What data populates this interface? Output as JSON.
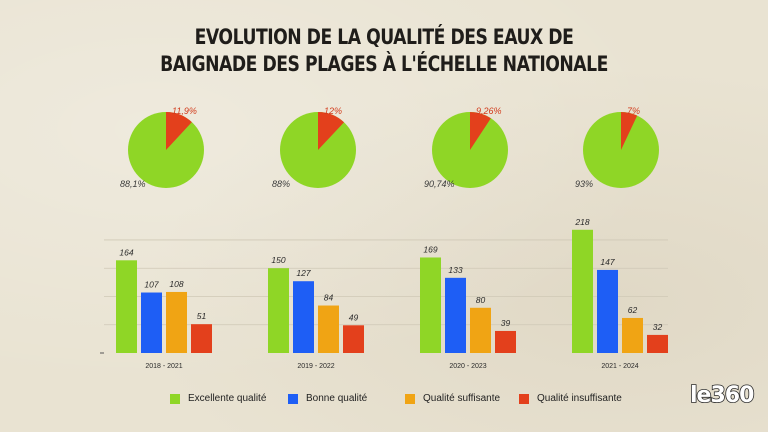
{
  "title_line1": "EVOLUTION DE LA QUALITÉ DES EAUX DE",
  "title_line2": "BAIGNADE DES PLAGES À L'ÉCHELLE NATIONALE",
  "logo": "le360",
  "colors": {
    "excellent": "#8fd626",
    "bonne": "#1e5ef5",
    "suffisante": "#f0a414",
    "insuffisante": "#e3401c",
    "pie_green": "#8fd626",
    "pie_red": "#e3401c",
    "pie_red_label": "#d23a1a"
  },
  "legend": [
    {
      "label": "Excellente qualité",
      "color": "#8fd626"
    },
    {
      "label": "Bonne qualité",
      "color": "#1e5ef5"
    },
    {
      "label": "Qualité suffisante",
      "color": "#f0a414"
    },
    {
      "label": "Qualité insuffisante",
      "color": "#e3401c"
    }
  ],
  "chart_data": [
    {
      "type": "pie",
      "pies": [
        {
          "slices": [
            {
              "label": "88,1%",
              "value": 88.1
            },
            {
              "label": "11,9%",
              "value": 11.9
            }
          ]
        },
        {
          "slices": [
            {
              "label": "88%",
              "value": 88
            },
            {
              "label": "12%",
              "value": 12
            }
          ]
        },
        {
          "slices": [
            {
              "label": "90,74%",
              "value": 90.74
            },
            {
              "label": "9,26%",
              "value": 9.26
            }
          ]
        },
        {
          "slices": [
            {
              "label": "93%",
              "value": 93
            },
            {
              "label": "7%",
              "value": 7
            }
          ]
        }
      ]
    },
    {
      "type": "bar",
      "categories": [
        "2018 - 2021",
        "2019 - 2022",
        "2020 - 2023",
        "2021 - 2024"
      ],
      "series": [
        {
          "name": "Excellente qualité",
          "values": [
            164,
            150,
            169,
            218
          ]
        },
        {
          "name": "Bonne qualité",
          "values": [
            107,
            127,
            133,
            147
          ]
        },
        {
          "name": "Qualité suffisante",
          "values": [
            108,
            84,
            80,
            62
          ]
        },
        {
          "name": "Qualité insuffisante",
          "values": [
            51,
            49,
            39,
            32
          ]
        }
      ],
      "ylim": [
        0,
        230
      ],
      "grid": true
    }
  ]
}
